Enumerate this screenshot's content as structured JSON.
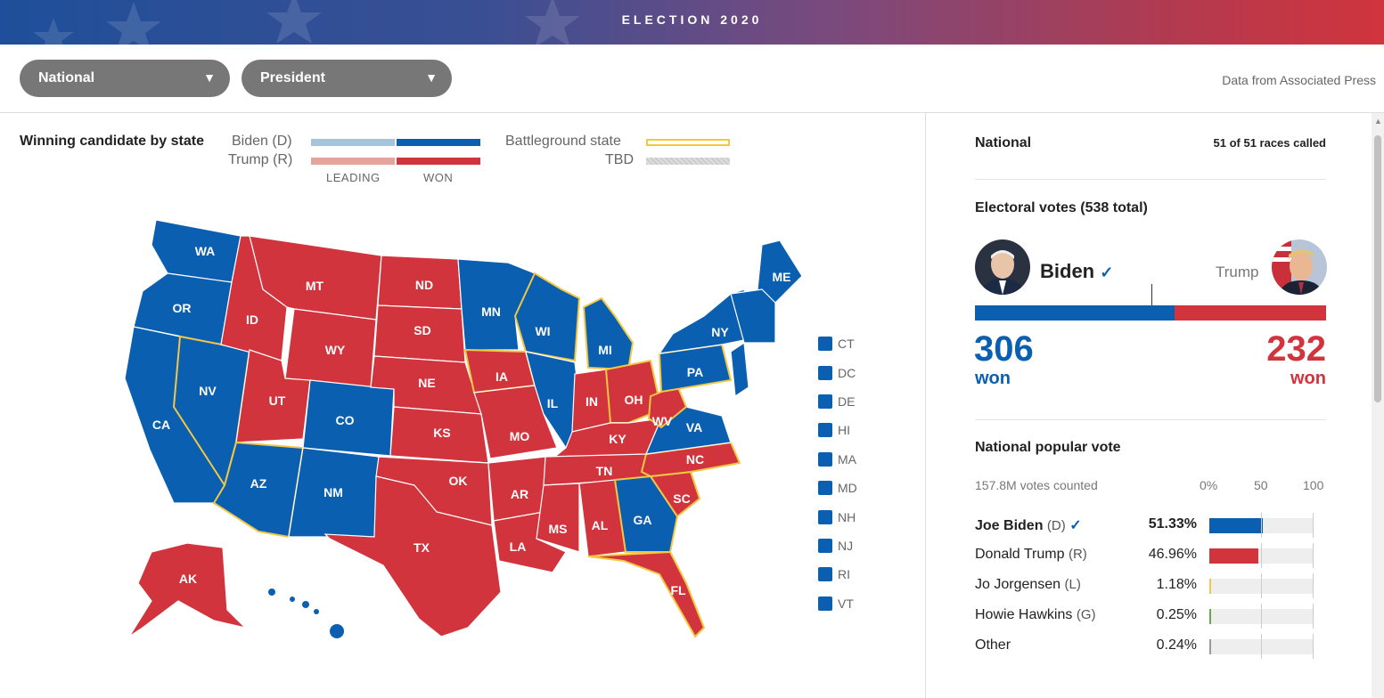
{
  "banner": {
    "title": "ELECTION 2020"
  },
  "controls": {
    "region": "National",
    "race": "President",
    "source": "Data from Associated Press"
  },
  "map": {
    "title": "Winning candidate by state",
    "legend": {
      "biden": "Biden (D)",
      "trump": "Trump (R)",
      "leading": "LEADING",
      "won": "WON",
      "battleground": "Battleground state",
      "tbd": "TBD"
    },
    "states": [
      "WA",
      "OR",
      "CA",
      "NV",
      "ID",
      "MT",
      "WY",
      "UT",
      "AZ",
      "CO",
      "NM",
      "ND",
      "SD",
      "NE",
      "KS",
      "OK",
      "TX",
      "MN",
      "IA",
      "MO",
      "AR",
      "LA",
      "WI",
      "IL",
      "MI",
      "IN",
      "KY",
      "TN",
      "MS",
      "AL",
      "OH",
      "WV",
      "VA",
      "NC",
      "SC",
      "GA",
      "FL",
      "PA",
      "NY",
      "ME",
      "AK"
    ],
    "small_states": [
      "CT",
      "DC",
      "DE",
      "HI",
      "MA",
      "MD",
      "NH",
      "NJ",
      "RI",
      "VT"
    ]
  },
  "panel": {
    "scope": "National",
    "races_called": "51 of 51 races called",
    "ev_title": "Electoral votes (538 total)",
    "biden": {
      "name": "Biden",
      "check": "✓",
      "ev": "306",
      "won": "won"
    },
    "trump": {
      "name": "Trump",
      "ev": "232",
      "won": "won"
    },
    "ev_share": {
      "biden": 306,
      "trump": 232,
      "total": 538
    },
    "pv_title": "National popular vote",
    "pv_counted": "157.8M votes counted",
    "pv_ticks": [
      "0%",
      "50",
      "100"
    ],
    "candidates": [
      {
        "name": "Joe Biden",
        "party": "(D)",
        "check": "✓",
        "pct": "51.33%",
        "value": 51.33,
        "color": "#0a5fb0"
      },
      {
        "name": "Donald Trump",
        "party": "(R)",
        "pct": "46.96%",
        "value": 46.96,
        "color": "#d1343c"
      },
      {
        "name": "Jo Jorgensen",
        "party": "(L)",
        "pct": "1.18%",
        "value": 1.18,
        "color": "#f2c744"
      },
      {
        "name": "Howie Hawkins",
        "party": "(G)",
        "pct": "0.25%",
        "value": 0.25,
        "color": "#6aa84f"
      },
      {
        "name": "Other",
        "party": "",
        "pct": "0.24%",
        "value": 0.24,
        "color": "#999999"
      }
    ]
  },
  "colors": {
    "dem": "#0a5fb0",
    "rep": "#d1343c",
    "dem_lead": "#a7c4dd",
    "rep_lead": "#e3a49c",
    "battleground": "#f2c744",
    "tbd": "#cccccc"
  }
}
